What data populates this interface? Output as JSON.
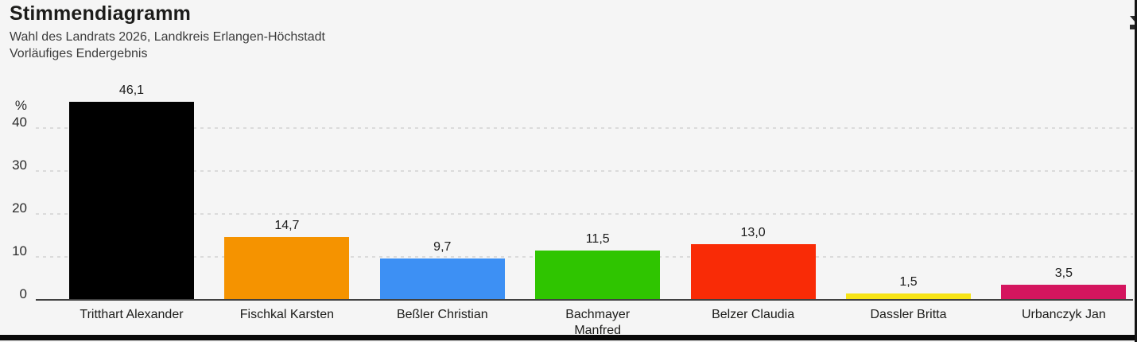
{
  "header": {
    "title": "Stimmendiagramm",
    "subtitle_line1": "Wahl des Landrats 2026, Landkreis Erlangen-Höchstadt",
    "subtitle_line2": "Vorläufiges Endergebnis"
  },
  "chart_data": {
    "type": "bar",
    "title": "Stimmendiagramm",
    "subtitle": "Wahl des Landrats 2026, Landkreis Erlangen-Höchstadt",
    "note": "Vorläufiges Endergebnis",
    "unit_label": "%",
    "categories": [
      "Tritthart Alexander",
      "Fischkal Karsten",
      "Beßler Christian",
      "Bachmayer Manfred",
      "Belzer Claudia",
      "Dassler Britta",
      "Urbanczyk Jan"
    ],
    "category_label_lines": [
      [
        "Tritthart Alexander"
      ],
      [
        "Fischkal Karsten"
      ],
      [
        "Beßler Christian"
      ],
      [
        "Bachmayer",
        "Manfred"
      ],
      [
        "Belzer Claudia"
      ],
      [
        "Dassler Britta"
      ],
      [
        "Urbanczyk Jan"
      ]
    ],
    "values": [
      46.1,
      14.7,
      9.7,
      11.5,
      13.0,
      1.5,
      3.5
    ],
    "value_labels": [
      "46,1",
      "14,7",
      "9,7",
      "11,5",
      "13,0",
      "1,5",
      "3,5"
    ],
    "bar_colors": [
      "#000000",
      "#F59300",
      "#3D90F4",
      "#2FC500",
      "#F92B06",
      "#F7E417",
      "#D4155E"
    ],
    "y_ticks": [
      0,
      10,
      20,
      30,
      40
    ],
    "ylim": [
      0,
      48
    ],
    "xlabel": "",
    "ylabel": "%",
    "grid": "horizontal-dashed",
    "legend": "none"
  },
  "colors": {
    "background": "#F5F5F5",
    "gridline": "#DBDBDB",
    "baseline": "#404040",
    "text_primary": "#1C1C1A",
    "text_secondary": "#3C3C3C"
  }
}
